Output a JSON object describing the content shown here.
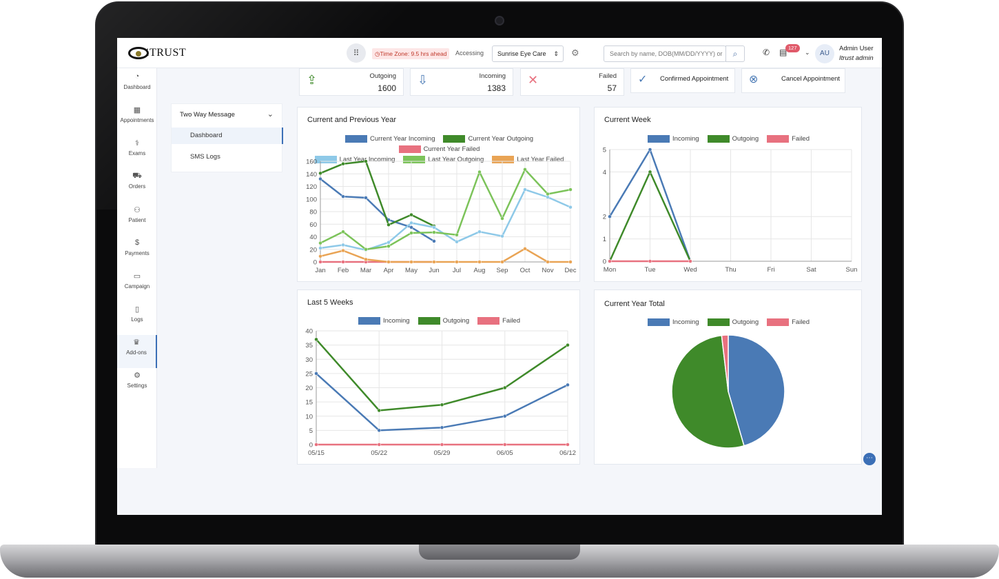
{
  "header": {
    "logo_text": "iTRUST",
    "timezone": "Time Zone: 9.5 hrs ahead",
    "accessing_label": "Accessing",
    "location": "Sunrise Eye Care",
    "search_placeholder": "Search by name, DOB(MM/DD/YYYY) or",
    "notification_count": "127",
    "avatar_initials": "AU",
    "user_name": "Admin User",
    "user_role": "Itrust admin"
  },
  "sidebar": {
    "items": [
      {
        "label": "Dashboard",
        "icon": "dashboard-icon"
      },
      {
        "label": "Appointments",
        "icon": "calendar-icon"
      },
      {
        "label": "Exams",
        "icon": "stethoscope-icon"
      },
      {
        "label": "Orders",
        "icon": "cart-icon"
      },
      {
        "label": "Patient",
        "icon": "patient-icon"
      },
      {
        "label": "Payments",
        "icon": "dollar-icon"
      },
      {
        "label": "Campaign",
        "icon": "campaign-icon"
      },
      {
        "label": "Logs",
        "icon": "document-icon"
      },
      {
        "label": "Add-ons",
        "icon": "crown-icon"
      },
      {
        "label": "Settings",
        "icon": "gear-icon"
      }
    ]
  },
  "submenu": {
    "title": "Two Way Message",
    "items": [
      "Dashboard",
      "SMS Logs"
    ]
  },
  "stats": {
    "outgoing": {
      "label": "Outgoing",
      "value": "1600"
    },
    "incoming": {
      "label": "Incoming",
      "value": "1383"
    },
    "failed": {
      "label": "Failed",
      "value": "57"
    },
    "confirm_label": "Confirmed Appointment",
    "cancel_label": "Cancel Appointment"
  },
  "colors": {
    "blue": "#4a7ab5",
    "green": "#3f8a2a",
    "red": "#e8717f",
    "light_blue": "#8ec9e8",
    "light_green": "#7cc35a",
    "orange": "#e9a455"
  },
  "chart_data": [
    {
      "type": "line",
      "title": "Current and Previous Year",
      "categories": [
        "Jan",
        "Feb",
        "Mar",
        "Apr",
        "May",
        "Jun",
        "Jul",
        "Aug",
        "Sep",
        "Oct",
        "Nov",
        "Dec"
      ],
      "ylim": [
        0,
        160
      ],
      "yticks": [
        0,
        20,
        40,
        60,
        80,
        100,
        120,
        140,
        160
      ],
      "grid": true,
      "legend": "top",
      "series": [
        {
          "name": "Current Year Incoming",
          "color": "#4a7ab5",
          "values": [
            132,
            104,
            102,
            67,
            55,
            33,
            null,
            null,
            null,
            null,
            null,
            null
          ]
        },
        {
          "name": "Current Year Outgoing",
          "color": "#3f8a2a",
          "values": [
            141,
            156,
            160,
            59,
            75,
            57,
            null,
            null,
            null,
            null,
            null,
            null
          ]
        },
        {
          "name": "Current Year Failed",
          "color": "#e8717f",
          "values": [
            0,
            0,
            0,
            0,
            0,
            0,
            null,
            null,
            null,
            null,
            null,
            null
          ]
        },
        {
          "name": "Last Year Incoming",
          "color": "#8ec9e8",
          "values": [
            22,
            27,
            19,
            31,
            62,
            55,
            32,
            48,
            41,
            115,
            103,
            87
          ]
        },
        {
          "name": "Last Year Outgoing",
          "color": "#7cc35a",
          "values": [
            30,
            48,
            20,
            25,
            46,
            47,
            43,
            143,
            69,
            147,
            108,
            115
          ]
        },
        {
          "name": "Last Year Failed",
          "color": "#e9a455",
          "values": [
            9,
            18,
            4,
            0,
            0,
            0,
            0,
            0,
            0,
            21,
            0,
            0
          ]
        }
      ]
    },
    {
      "type": "line",
      "title": "Current Week",
      "categories": [
        "Mon",
        "Tue",
        "Wed",
        "Thu",
        "Fri",
        "Sat",
        "Sun"
      ],
      "ylim": [
        0,
        5
      ],
      "yticks": [
        0,
        1,
        2,
        4,
        5
      ],
      "grid": true,
      "legend": "top",
      "series": [
        {
          "name": "Incoming",
          "color": "#4a7ab5",
          "values": [
            2,
            5,
            0,
            null,
            null,
            null,
            null
          ]
        },
        {
          "name": "Outgoing",
          "color": "#3f8a2a",
          "values": [
            0,
            4,
            0,
            null,
            null,
            null,
            null
          ]
        },
        {
          "name": "Failed",
          "color": "#e8717f",
          "values": [
            0,
            0,
            0,
            null,
            null,
            null,
            null
          ]
        }
      ]
    },
    {
      "type": "line",
      "title": "Last 5 Weeks",
      "categories": [
        "05/15",
        "05/22",
        "05/29",
        "06/05",
        "06/12"
      ],
      "ylim": [
        0,
        40
      ],
      "yticks": [
        0,
        5,
        10,
        15,
        20,
        25,
        30,
        35,
        40
      ],
      "grid": true,
      "legend": "top",
      "series": [
        {
          "name": "Incoming",
          "color": "#4a7ab5",
          "values": [
            25,
            5,
            6,
            10,
            21
          ]
        },
        {
          "name": "Outgoing",
          "color": "#3f8a2a",
          "values": [
            37,
            12,
            14,
            20,
            35
          ]
        },
        {
          "name": "Failed",
          "color": "#e8717f",
          "values": [
            0,
            0,
            0,
            0,
            0
          ]
        }
      ]
    },
    {
      "type": "pie",
      "title": "Current Year Total",
      "legend": "top",
      "slices": [
        {
          "name": "Incoming",
          "color": "#4a7ab5",
          "value": 1383
        },
        {
          "name": "Outgoing",
          "color": "#3f8a2a",
          "value": 1600
        },
        {
          "name": "Failed",
          "color": "#e8717f",
          "value": 57
        }
      ]
    }
  ]
}
